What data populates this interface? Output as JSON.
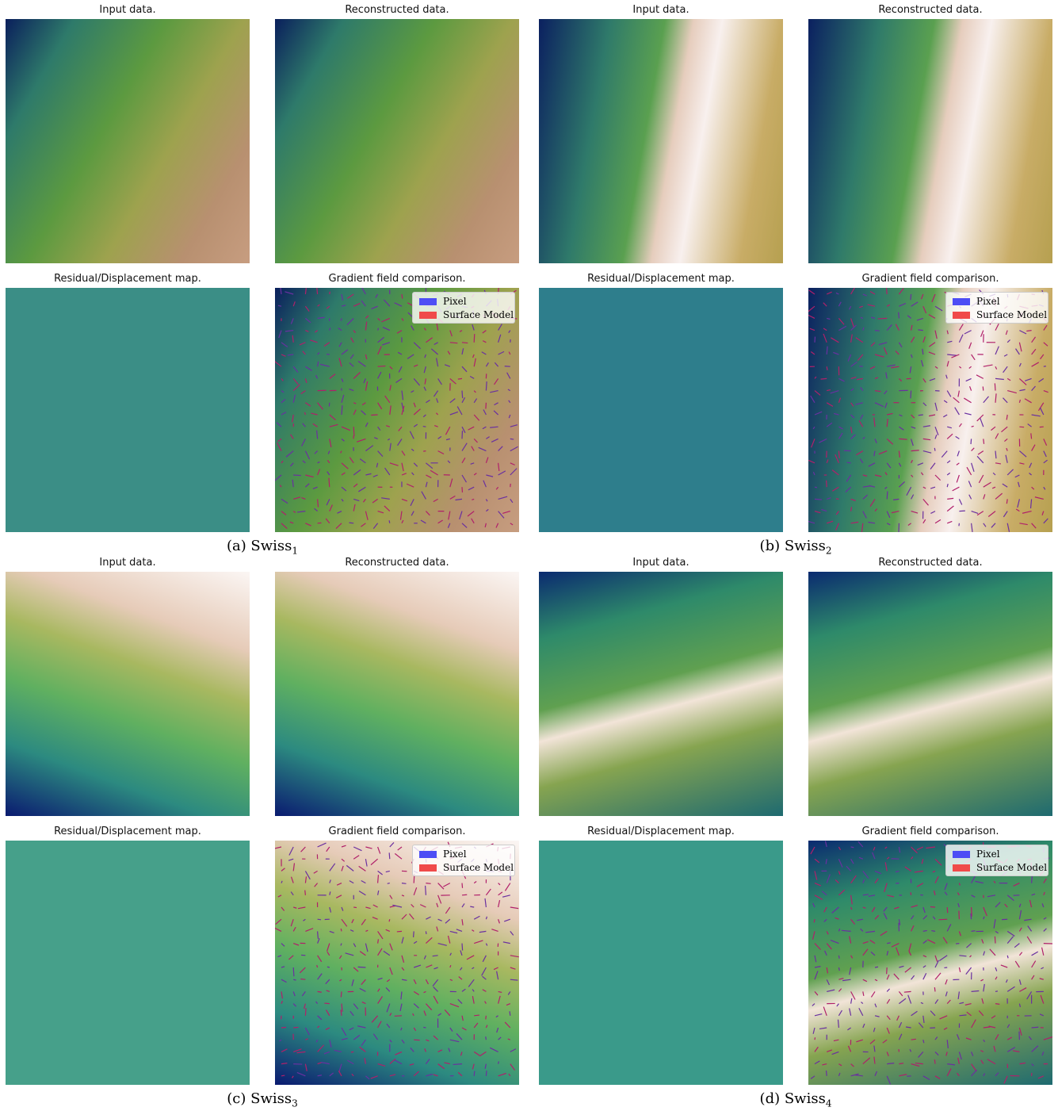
{
  "figure": {
    "panels": [
      {
        "titles": [
          "Input data.",
          "Reconstructed data.",
          "Residual/Displacement map.",
          "Gradient field comparison."
        ],
        "legend": [
          "Pixel",
          "Surface Model"
        ],
        "caption": {
          "label": "(a) Swiss",
          "subscript": "1"
        }
      },
      {
        "titles": [
          "Input data.",
          "Reconstructed data.",
          "Residual/Displacement map.",
          "Gradient field comparison."
        ],
        "legend": [
          "Pixel",
          "Surface Model"
        ],
        "caption": {
          "label": "(b) Swiss",
          "subscript": "2"
        }
      },
      {
        "titles": [
          "Input data.",
          "Reconstructed data.",
          "Residual/Displacement map.",
          "Gradient field comparison."
        ],
        "legend": [
          "Pixel",
          "Surface Model"
        ],
        "caption": {
          "label": "(c) Swiss",
          "subscript": "3"
        }
      },
      {
        "titles": [
          "Input data.",
          "Reconstructed data.",
          "Residual/Displacement map.",
          "Gradient field comparison."
        ],
        "legend": [
          "Pixel",
          "Surface Model"
        ],
        "caption": {
          "label": "(d) Swiss",
          "subscript": "4"
        }
      }
    ]
  }
}
